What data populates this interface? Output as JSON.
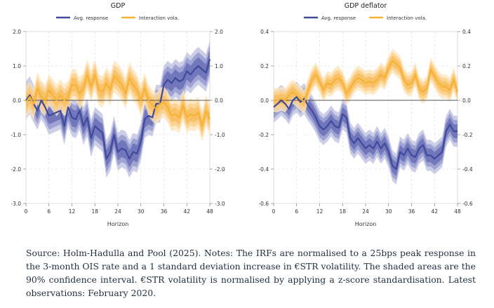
{
  "figure": {
    "note": "Source: Holm-Hadulla and Pool (2025). Notes: The IRFs are normalised to a 25bps peak response in the 3-month OIS rate and a 1 standard deviation increase in €STR volatility. The shaded areas are the 90% confidence interval. €STR volatility is normalised by applying a z-score standardisation. Latest observations: February 2020."
  },
  "colors": {
    "avg_response": "#3f4a9b",
    "interaction_vola": "#f5b335",
    "zero_line": "#555555",
    "grid": "#d9d9d9"
  },
  "chart_data": [
    {
      "type": "line",
      "title": "GDP",
      "xlabel": "Horizon",
      "ylabel": "",
      "xlim": [
        0,
        48
      ],
      "ylim": [
        -3.0,
        2.0
      ],
      "x_ticks": [
        0,
        6,
        12,
        18,
        24,
        30,
        36,
        42,
        48
      ],
      "y_ticks": [
        2.0,
        1.0,
        0.0,
        -1.0,
        -2.0,
        -3.0
      ],
      "y_tick_labels": [
        "2.0",
        "1.0",
        "0.0",
        "-1.0",
        "-2.0",
        "-3.0"
      ],
      "grid": true,
      "legend": "top",
      "band_half_widths": {
        "avg_response": [
          0.25,
          0.4,
          0.55
        ],
        "interaction_vola": [
          0.2,
          0.33,
          0.46
        ]
      },
      "series": [
        {
          "name": "Avg. response",
          "x": [
            0,
            1,
            2,
            3,
            4,
            5,
            6,
            7,
            8,
            9,
            10,
            11,
            12,
            13,
            14,
            15,
            16,
            17,
            18,
            19,
            20,
            21,
            22,
            23,
            24,
            25,
            26,
            27,
            28,
            29,
            30,
            31,
            32,
            33,
            34,
            35,
            36,
            37,
            38,
            39,
            40,
            41,
            42,
            43,
            44,
            45,
            46,
            47,
            48
          ],
          "values": [
            0.0,
            0.15,
            -0.1,
            -0.3,
            0.0,
            -0.2,
            -0.45,
            -0.4,
            -0.35,
            -0.3,
            -0.75,
            -0.2,
            -0.5,
            -0.55,
            -0.3,
            -0.75,
            -0.5,
            -1.1,
            -0.75,
            -0.85,
            -0.95,
            -1.7,
            -1.5,
            -1.0,
            -1.5,
            -1.4,
            -1.45,
            -1.7,
            -1.5,
            -1.55,
            -1.2,
            -0.55,
            -0.45,
            -0.5,
            -0.1,
            -0.1,
            0.45,
            0.6,
            0.5,
            0.65,
            0.55,
            0.6,
            0.85,
            0.75,
            0.9,
            1.0,
            0.9,
            0.8,
            1.2
          ]
        },
        {
          "name": "Interaction vola.",
          "x": [
            0,
            1,
            2,
            3,
            4,
            5,
            6,
            7,
            8,
            9,
            10,
            11,
            12,
            13,
            14,
            15,
            16,
            17,
            18,
            19,
            20,
            21,
            22,
            23,
            24,
            25,
            26,
            27,
            28,
            29,
            30,
            31,
            32,
            33,
            34,
            35,
            36,
            37,
            38,
            39,
            40,
            41,
            42,
            43,
            44,
            45,
            46,
            47,
            48
          ],
          "values": [
            -0.05,
            0.1,
            -0.1,
            0.35,
            0.1,
            0.0,
            0.3,
            0.15,
            0.0,
            0.15,
            0.0,
            0.1,
            0.45,
            0.45,
            0.2,
            0.35,
            0.75,
            0.4,
            0.75,
            0.3,
            0.25,
            0.5,
            0.3,
            0.7,
            0.6,
            0.45,
            0.2,
            0.65,
            0.45,
            0.3,
            0.0,
            0.35,
            0.0,
            -0.15,
            -0.25,
            -0.1,
            -0.05,
            -0.2,
            -0.45,
            -0.4,
            -0.5,
            -0.15,
            -0.5,
            -0.4,
            -0.45,
            -0.35,
            -0.75,
            -0.3,
            -0.55
          ]
        }
      ]
    },
    {
      "type": "line",
      "title": "GDP deflator",
      "xlabel": "Horizon",
      "ylabel": "",
      "xlim": [
        0,
        48
      ],
      "ylim": [
        -0.6,
        0.4
      ],
      "x_ticks": [
        0,
        6,
        12,
        18,
        24,
        30,
        36,
        42,
        48
      ],
      "y_ticks": [
        0.4,
        0.2,
        0.0,
        -0.2,
        -0.4,
        -0.6
      ],
      "y_tick_labels": [
        "0.4",
        "0.2",
        "0.0",
        "-0.2",
        "-0.4",
        "-0.6"
      ],
      "grid": true,
      "legend": "top",
      "band_half_widths": {
        "avg_response": [
          0.04,
          0.065,
          0.09
        ],
        "interaction_vola": [
          0.03,
          0.05,
          0.07
        ]
      },
      "series": [
        {
          "name": "Avg. response",
          "x": [
            0,
            1,
            2,
            3,
            4,
            5,
            6,
            7,
            8,
            9,
            10,
            11,
            12,
            13,
            14,
            15,
            16,
            17,
            18,
            19,
            20,
            21,
            22,
            23,
            24,
            25,
            26,
            27,
            28,
            29,
            30,
            31,
            32,
            33,
            34,
            35,
            36,
            37,
            38,
            39,
            40,
            41,
            42,
            43,
            44,
            45,
            46,
            47,
            48
          ],
          "values": [
            -0.04,
            -0.02,
            0.0,
            -0.02,
            -0.05,
            0.0,
            0.02,
            -0.01,
            0.01,
            -0.03,
            -0.06,
            -0.1,
            -0.15,
            -0.17,
            -0.15,
            -0.12,
            -0.15,
            -0.16,
            -0.08,
            -0.1,
            -0.22,
            -0.25,
            -0.22,
            -0.25,
            -0.28,
            -0.26,
            -0.28,
            -0.24,
            -0.28,
            -0.25,
            -0.3,
            -0.38,
            -0.4,
            -0.3,
            -0.32,
            -0.28,
            -0.32,
            -0.33,
            -0.28,
            -0.26,
            -0.32,
            -0.32,
            -0.34,
            -0.32,
            -0.3,
            -0.18,
            -0.14,
            -0.18,
            -0.18
          ]
        },
        {
          "name": "Interaction vola.",
          "x": [
            0,
            1,
            2,
            3,
            4,
            5,
            6,
            7,
            8,
            9,
            10,
            11,
            12,
            13,
            14,
            15,
            16,
            17,
            18,
            19,
            20,
            21,
            22,
            23,
            24,
            25,
            26,
            27,
            28,
            29,
            30,
            31,
            32,
            33,
            34,
            35,
            36,
            37,
            38,
            39,
            40,
            41,
            42,
            43,
            44,
            45,
            46,
            47,
            48
          ],
          "values": [
            0.0,
            0.0,
            0.01,
            0.0,
            0.03,
            0.05,
            0.03,
            0.01,
            -0.01,
            0.06,
            0.12,
            0.15,
            0.11,
            0.06,
            0.1,
            0.09,
            0.12,
            0.13,
            0.1,
            0.04,
            0.07,
            0.11,
            0.13,
            0.12,
            0.1,
            0.11,
            0.1,
            0.12,
            0.15,
            0.13,
            0.19,
            0.23,
            0.21,
            0.19,
            0.12,
            0.09,
            0.1,
            0.15,
            0.07,
            0.05,
            0.07,
            0.18,
            0.14,
            0.1,
            0.08,
            0.08,
            0.06,
            0.12,
            0.05
          ]
        }
      ]
    }
  ]
}
